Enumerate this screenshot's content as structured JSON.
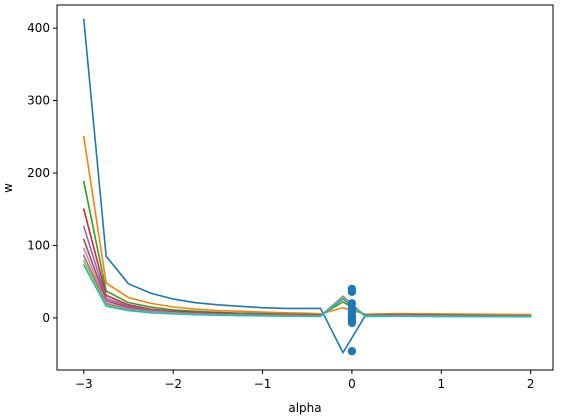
{
  "chart_data": {
    "type": "line",
    "title": "",
    "xlabel": "alpha",
    "ylabel": "w",
    "xlim": [
      -3.3,
      2.25
    ],
    "ylim": [
      -72,
      432
    ],
    "grid": false,
    "legend": "none",
    "xticks": [
      -3,
      -2,
      -1,
      0,
      1,
      2
    ],
    "xtick_labels": [
      "−3",
      "−2",
      "−1",
      "0",
      "1",
      "2"
    ],
    "yticks": [
      0,
      100,
      200,
      300,
      400
    ],
    "ytick_labels": [
      "0",
      "100",
      "200",
      "300",
      "400"
    ],
    "x": [
      -3.0,
      -2.75,
      -2.5,
      -2.25,
      -2.0,
      -1.75,
      -1.5,
      -1.25,
      -1.0,
      -0.75,
      -0.5,
      -0.35,
      -0.1,
      0.15,
      0.5,
      1.0,
      1.5,
      2.0
    ],
    "series": [
      {
        "color": "#1f77b4",
        "values": [
          412,
          85,
          47,
          34,
          26,
          21,
          18,
          16,
          14,
          13,
          13,
          13,
          -48,
          3,
          3.5,
          3.5,
          3.5,
          3.5
        ]
      },
      {
        "color": "#ff7f0e",
        "values": [
          250,
          48,
          28,
          20,
          15,
          12,
          10,
          9,
          8,
          7,
          6.5,
          5.5,
          14,
          5,
          6,
          5.5,
          5,
          4.5
        ]
      },
      {
        "color": "#2ca02c",
        "values": [
          188,
          37,
          21,
          15,
          11,
          9,
          7.5,
          6.5,
          6,
          5,
          4.5,
          4,
          22,
          4,
          4.5,
          4,
          3.5,
          3
        ]
      },
      {
        "color": "#d62728",
        "values": [
          150,
          31,
          18,
          12,
          9,
          7.5,
          6.5,
          5.5,
          5,
          4.5,
          4,
          3.5,
          26,
          3,
          4,
          3.5,
          3,
          2.5
        ]
      },
      {
        "color": "#9467bd",
        "values": [
          126,
          27,
          16,
          11,
          8,
          6.5,
          5.5,
          5,
          4.5,
          4,
          3.5,
          3,
          28,
          3,
          3.5,
          3,
          2.5,
          2.5
        ]
      },
      {
        "color": "#8c564b",
        "values": [
          108,
          24,
          14,
          10,
          7.5,
          6,
          5,
          4.5,
          4,
          3.5,
          3,
          2.8,
          29,
          2.8,
          3,
          2.5,
          2.5,
          2
        ]
      },
      {
        "color": "#e377c2",
        "values": [
          96,
          21,
          12.5,
          9,
          7,
          5.5,
          4.5,
          4,
          3.5,
          3,
          2.8,
          2.5,
          30,
          2.5,
          3,
          2.5,
          2,
          2
        ]
      },
      {
        "color": "#7f7f7f",
        "values": [
          86,
          19,
          11.5,
          8,
          6.5,
          5,
          4.2,
          3.7,
          3.2,
          2.8,
          2.5,
          2.3,
          29,
          2.3,
          2.5,
          2.2,
          2,
          1.8
        ]
      },
      {
        "color": "#bcbd22",
        "values": [
          79,
          17.5,
          10.5,
          7.5,
          6,
          4.7,
          4,
          3.5,
          3,
          2.6,
          2.3,
          2.1,
          28,
          2.1,
          2.3,
          2,
          1.8,
          1.7
        ]
      },
      {
        "color": "#17becf",
        "values": [
          73,
          16,
          10,
          7,
          5.5,
          4.4,
          3.7,
          3.2,
          2.8,
          2.4,
          2.1,
          2,
          27,
          2,
          2.2,
          1.9,
          1.7,
          1.6
        ]
      }
    ],
    "scatter": {
      "color": "#1f77b4",
      "x": [
        0,
        0,
        0,
        0,
        0,
        0,
        0,
        0,
        0,
        0
      ],
      "y": [
        40,
        36,
        20,
        13,
        8,
        3,
        0,
        -3,
        -7,
        -46
      ]
    }
  }
}
